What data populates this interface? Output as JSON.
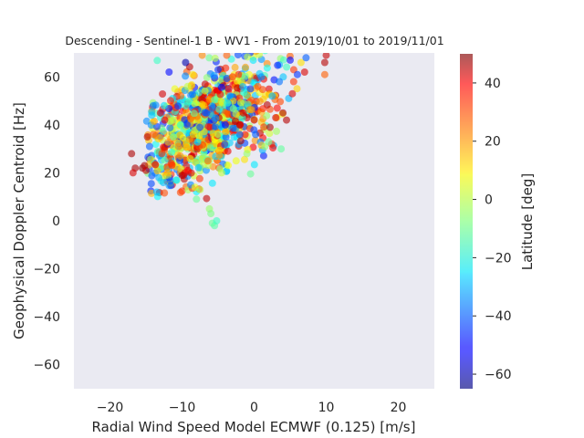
{
  "chart_data": {
    "type": "scatter",
    "title": "Descending - Sentinel-1 B - WV1 - From 2019/10/01 to 2019/11/01",
    "xlabel": "Radial Wind Speed Model ECMWF (0.125) [m/s]",
    "ylabel": "Geophysical Doppler Centroid [Hz]",
    "xlim": [
      -25,
      25
    ],
    "ylim": [
      -70,
      70
    ],
    "xticks": [
      -20,
      -10,
      0,
      10,
      20
    ],
    "yticks": [
      -60,
      -40,
      -20,
      0,
      20,
      40,
      60
    ],
    "grid": false,
    "background": "#eaeaf2",
    "colormap": "jet",
    "point_alpha": 0.6,
    "colorbar": {
      "label": "Latitude [deg]",
      "range": [
        -65,
        50
      ],
      "ticks": [
        40,
        20,
        0,
        -20,
        -40,
        -60
      ]
    },
    "points": [
      [
        -17.0,
        28,
        45
      ],
      [
        -16.5,
        22,
        45
      ],
      [
        -16.8,
        20,
        40
      ],
      [
        -15.5,
        22,
        48
      ],
      [
        -15.2,
        23,
        45
      ],
      [
        -15.0,
        21,
        42
      ],
      [
        -14.8,
        35,
        44
      ],
      [
        -14.5,
        31,
        -40
      ],
      [
        -14.0,
        36,
        25
      ],
      [
        -14.0,
        48,
        -35
      ],
      [
        -14.2,
        44,
        -28
      ],
      [
        -13.5,
        12,
        -30
      ],
      [
        -13.2,
        18,
        -30
      ],
      [
        -13.0,
        45,
        40
      ],
      [
        -12.8,
        28,
        30
      ],
      [
        -12.5,
        48,
        -25
      ],
      [
        -12.4,
        42,
        38
      ],
      [
        -12.0,
        20,
        15
      ],
      [
        -11.8,
        62,
        -50
      ],
      [
        -11.5,
        24,
        30
      ],
      [
        -11.2,
        35,
        -10
      ],
      [
        -11.0,
        55,
        5
      ],
      [
        -10.8,
        17,
        -25
      ],
      [
        -10.5,
        31,
        20
      ],
      [
        -10.2,
        40,
        -20
      ],
      [
        -10.0,
        19,
        45
      ],
      [
        -9.8,
        19,
        42
      ],
      [
        -9.6,
        20,
        40
      ],
      [
        -9.5,
        66,
        -60
      ],
      [
        -9.2,
        21,
        35
      ],
      [
        -9.0,
        50,
        -15
      ],
      [
        -8.8,
        15,
        -35
      ],
      [
        -8.5,
        61,
        10
      ],
      [
        -8.2,
        14,
        5
      ],
      [
        -8.0,
        9,
        -10
      ],
      [
        -7.5,
        13,
        0
      ],
      [
        -7.2,
        69,
        20
      ],
      [
        -6.8,
        57,
        42
      ],
      [
        -6.2,
        5,
        -5
      ],
      [
        -6.0,
        3,
        -8
      ],
      [
        -5.8,
        -1,
        -10
      ],
      [
        -5.5,
        -2,
        -12
      ],
      [
        -5.2,
        0,
        -15
      ],
      [
        -5.0,
        63,
        -45
      ],
      [
        -4.5,
        20,
        0
      ],
      [
        -4.0,
        40,
        -50
      ],
      [
        -3.8,
        69,
        25
      ],
      [
        -3.5,
        55,
        35
      ],
      [
        -3.0,
        60,
        30
      ],
      [
        -2.5,
        25,
        5
      ],
      [
        -2.0,
        36,
        -38
      ],
      [
        -1.5,
        45,
        40
      ],
      [
        -1.2,
        64,
        18
      ],
      [
        -1.0,
        28,
        -5
      ],
      [
        -0.5,
        55,
        -45
      ],
      [
        0.0,
        42,
        42
      ],
      [
        0.2,
        36,
        -40
      ],
      [
        0.5,
        56,
        28
      ],
      [
        1.0,
        60,
        -35
      ],
      [
        1.5,
        31,
        -5
      ],
      [
        2.0,
        33,
        -10
      ],
      [
        2.2,
        39,
        45
      ],
      [
        2.5,
        52,
        -30
      ],
      [
        3.0,
        43,
        40
      ],
      [
        3.2,
        47,
        35
      ],
      [
        3.5,
        58,
        -38
      ],
      [
        4.0,
        45,
        45
      ],
      [
        4.5,
        42,
        44
      ],
      [
        4.8,
        51,
        -30
      ],
      [
        5.0,
        67,
        -50
      ],
      [
        5.3,
        53,
        40
      ],
      [
        5.5,
        63,
        30
      ],
      [
        6.0,
        61,
        -45
      ],
      [
        6.5,
        66,
        10
      ],
      [
        7.0,
        62,
        40
      ],
      [
        7.2,
        68,
        -40
      ],
      [
        9.8,
        61,
        25
      ],
      [
        9.8,
        66,
        44
      ],
      [
        10.0,
        69,
        42
      ]
    ],
    "cloud": {
      "count": 950,
      "center_x": -6.5,
      "center_y": 40,
      "spread_x": 4.5,
      "slope": 1.45,
      "spread_y": 14,
      "lat_range": [
        -50,
        45
      ]
    }
  }
}
